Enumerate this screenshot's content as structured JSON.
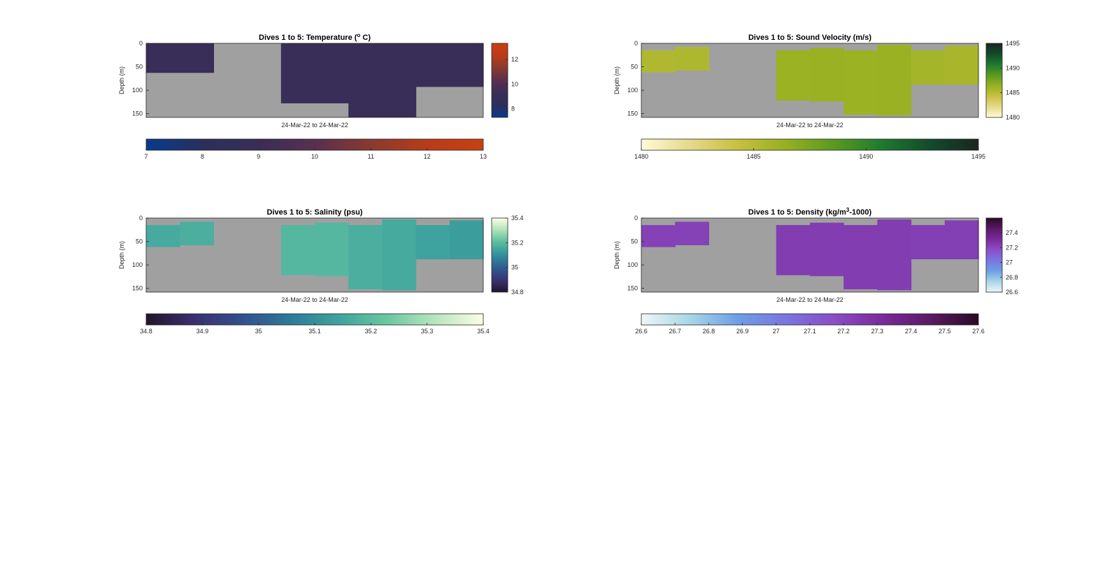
{
  "chart_data": [
    {
      "type": "heatmap",
      "title_main": "Dives 1 to 5: Temperature (",
      "title_sup": "o",
      "title_end": " C)",
      "xlabel": "24-Mar-22 to 24-Mar-22",
      "ylabel": "Depth (m)",
      "ylim": [
        0,
        158
      ],
      "yticks": [
        0,
        50,
        100,
        150
      ],
      "profiles": [
        {
          "top": 0,
          "bottom": 63,
          "value": 9.2
        },
        {
          "top": 0,
          "bottom": 63,
          "value": 9.2
        },
        {
          "top": 0,
          "bottom": 0,
          "value": null
        },
        {
          "top": 0,
          "bottom": 0,
          "value": null
        },
        {
          "top": 0,
          "bottom": 128,
          "value": 9.2
        },
        {
          "top": 0,
          "bottom": 128,
          "value": 9.2
        },
        {
          "top": 0,
          "bottom": 158,
          "value": 9.2
        },
        {
          "top": 0,
          "bottom": 158,
          "value": 9.2
        },
        {
          "top": 0,
          "bottom": 93,
          "value": 9.2
        },
        {
          "top": 0,
          "bottom": 93,
          "value": 9.2
        }
      ],
      "colorbar_right": {
        "range": [
          7.3,
          13.3
        ],
        "ticks": [
          8,
          10,
          12
        ]
      },
      "colorbar_bottom": {
        "range": [
          7,
          13
        ],
        "ticks": [
          7,
          8,
          9,
          10,
          11,
          12,
          13
        ]
      },
      "colormap": [
        "#0a3a8a",
        "#2b2f5a",
        "#3a2e58",
        "#5a2f4e",
        "#8a3a2e",
        "#b83c1a",
        "#c84010"
      ],
      "bottom_fill_start": 0.01
    },
    {
      "type": "heatmap",
      "title_main": "Dives 1 to 5: Sound Velocity (m/s)",
      "title_sup": "",
      "title_end": "",
      "xlabel": "24-Mar-22 to 24-Mar-22",
      "ylabel": "Depth (m)",
      "ylim": [
        0,
        158
      ],
      "yticks": [
        0,
        50,
        100,
        150
      ],
      "profiles": [
        {
          "top": 15,
          "bottom": 62,
          "value": 1485.3
        },
        {
          "top": 8,
          "bottom": 58,
          "value": 1485.4
        },
        {
          "top": 0,
          "bottom": 0,
          "value": null
        },
        {
          "top": 0,
          "bottom": 0,
          "value": null
        },
        {
          "top": 15,
          "bottom": 122,
          "value": 1486.2
        },
        {
          "top": 10,
          "bottom": 124,
          "value": 1486.3
        },
        {
          "top": 15,
          "bottom": 152,
          "value": 1486.2
        },
        {
          "top": 3,
          "bottom": 154,
          "value": 1486.3
        },
        {
          "top": 15,
          "bottom": 88,
          "value": 1485.8
        },
        {
          "top": 5,
          "bottom": 88,
          "value": 1485.6
        }
      ],
      "colorbar_right": {
        "range": [
          1480,
          1495
        ],
        "ticks": [
          1480,
          1485,
          1490,
          1495
        ]
      },
      "colorbar_bottom": {
        "range": [
          1480,
          1495
        ],
        "ticks": [
          1480,
          1485,
          1490,
          1495
        ]
      },
      "colormap": [
        "#fdfbd8",
        "#e6d98a",
        "#c8c040",
        "#96b020",
        "#5a9a20",
        "#1e7a30",
        "#134a2a",
        "#1a2620"
      ],
      "bottom_fill_start": 0
    },
    {
      "type": "heatmap",
      "title_main": "Dives 1 to 5: Salinity (psu)",
      "title_sup": "",
      "title_end": "",
      "xlabel": "24-Mar-22 to 24-Mar-22",
      "ylabel": "Depth (m)",
      "ylim": [
        0,
        158
      ],
      "yticks": [
        0,
        50,
        100,
        150
      ],
      "profiles": [
        {
          "top": 15,
          "bottom": 62,
          "value": 35.16
        },
        {
          "top": 8,
          "bottom": 58,
          "value": 35.17
        },
        {
          "top": 0,
          "bottom": 0,
          "value": null
        },
        {
          "top": 0,
          "bottom": 0,
          "value": null
        },
        {
          "top": 15,
          "bottom": 122,
          "value": 35.19
        },
        {
          "top": 10,
          "bottom": 124,
          "value": 35.19
        },
        {
          "top": 15,
          "bottom": 152,
          "value": 35.17
        },
        {
          "top": 3,
          "bottom": 154,
          "value": 35.16
        },
        {
          "top": 15,
          "bottom": 88,
          "value": 35.14
        },
        {
          "top": 5,
          "bottom": 88,
          "value": 35.13
        }
      ],
      "colorbar_right": {
        "range": [
          34.8,
          35.4
        ],
        "ticks": [
          34.8,
          35,
          35.2,
          35.4
        ]
      },
      "colorbar_bottom": {
        "range": [
          34.8,
          35.4
        ],
        "ticks": [
          34.8,
          34.9,
          35,
          35.1,
          35.2,
          35.3,
          35.4
        ]
      },
      "colormap": [
        "#22152a",
        "#3b2e6e",
        "#33508e",
        "#2f7a98",
        "#3ea39e",
        "#6ac7a2",
        "#b8e6bc",
        "#fdfde6"
      ],
      "bottom_fill_start": 0
    },
    {
      "type": "heatmap",
      "title_main": "Dives 1 to 5: Density (kg/m",
      "title_sup": "3",
      "title_end": "-1000)",
      "xlabel": "24-Mar-22 to 24-Mar-22",
      "ylabel": "Depth (m)",
      "ylim": [
        0,
        158
      ],
      "yticks": [
        0,
        50,
        100,
        150
      ],
      "profiles": [
        {
          "top": 15,
          "bottom": 62,
          "value": 27.22
        },
        {
          "top": 8,
          "bottom": 58,
          "value": 27.22
        },
        {
          "top": 0,
          "bottom": 0,
          "value": null
        },
        {
          "top": 0,
          "bottom": 0,
          "value": null
        },
        {
          "top": 15,
          "bottom": 122,
          "value": 27.24
        },
        {
          "top": 10,
          "bottom": 124,
          "value": 27.24
        },
        {
          "top": 15,
          "bottom": 152,
          "value": 27.24
        },
        {
          "top": 3,
          "bottom": 154,
          "value": 27.24
        },
        {
          "top": 15,
          "bottom": 88,
          "value": 27.23
        },
        {
          "top": 5,
          "bottom": 88,
          "value": 27.23
        }
      ],
      "colorbar_right": {
        "range": [
          26.6,
          27.6
        ],
        "ticks": [
          26.6,
          26.8,
          27,
          27.2,
          27.4
        ]
      },
      "colorbar_bottom": {
        "range": [
          26.6,
          27.6
        ],
        "ticks": [
          26.6,
          26.7,
          26.8,
          26.9,
          27,
          27.1,
          27.2,
          27.3,
          27.4,
          27.5,
          27.6
        ]
      },
      "colormap": [
        "#eef6f6",
        "#a8d6e6",
        "#6e9ee6",
        "#7a76e0",
        "#8a4ec6",
        "#7a2a9a",
        "#5a1a64",
        "#2a0a24"
      ],
      "bottom_fill_start": 0
    }
  ]
}
